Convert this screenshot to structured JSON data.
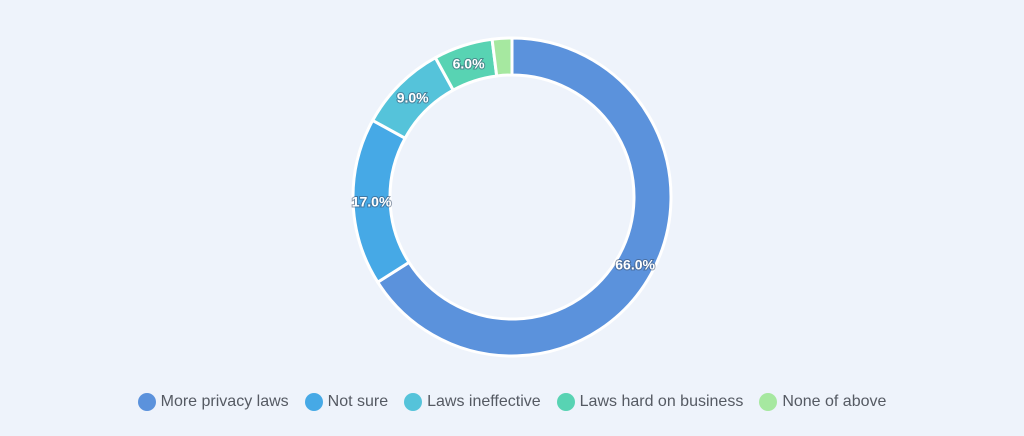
{
  "chart_data": {
    "type": "pie",
    "subtype": "donut",
    "title": "",
    "legend_position": "bottom",
    "slices": [
      {
        "name": "More privacy laws",
        "value": 66.0,
        "label": "66.0%",
        "color": "#5b92dc"
      },
      {
        "name": "Not sure",
        "value": 17.0,
        "label": "17.0%",
        "color": "#46a9e6"
      },
      {
        "name": "Laws ineffective",
        "value": 9.0,
        "label": "9.0%",
        "color": "#55c3da"
      },
      {
        "name": "Laws hard on business",
        "value": 6.0,
        "label": "6.0%",
        "color": "#58d3b3"
      },
      {
        "name": "None of above",
        "value": 2.0,
        "label": "",
        "color": "#a6e8a0"
      }
    ]
  }
}
